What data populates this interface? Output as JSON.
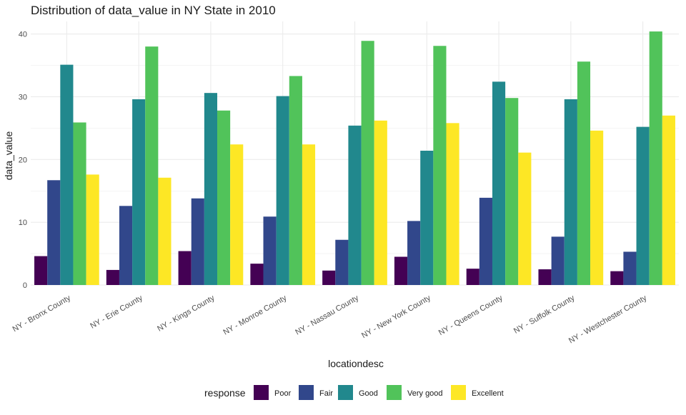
{
  "chart_data": {
    "type": "bar",
    "title": "Distribution of data_value in NY State in 2010",
    "xlabel": "locationdesc",
    "ylabel": "data_value",
    "ylim": [
      0,
      42
    ],
    "yticks": [
      0,
      10,
      20,
      30,
      40
    ],
    "grid": true,
    "legend_position": "bottom",
    "legend_title": "response",
    "categories": [
      "NY - Bronx County",
      "NY - Erie County",
      "NY - Kings County",
      "NY - Monroe County",
      "NY - Nassau County",
      "NY - New York County",
      "NY - Queens County",
      "NY - Suffolk County",
      "NY - Westchester County"
    ],
    "series": [
      {
        "name": "Poor",
        "color": "#440154",
        "values": [
          4.6,
          2.4,
          5.4,
          3.4,
          2.3,
          4.5,
          2.6,
          2.5,
          2.2
        ]
      },
      {
        "name": "Fair",
        "color": "#31478b",
        "values": [
          16.7,
          12.6,
          13.8,
          10.9,
          7.2,
          10.2,
          13.9,
          7.7,
          5.3
        ]
      },
      {
        "name": "Good",
        "color": "#21888d",
        "values": [
          35.1,
          29.6,
          30.6,
          30.1,
          25.4,
          21.4,
          32.4,
          29.6,
          25.2
        ]
      },
      {
        "name": "Very good",
        "color": "#51c35a",
        "values": [
          25.9,
          38.0,
          27.8,
          33.3,
          38.9,
          38.1,
          29.8,
          35.6,
          40.4
        ]
      },
      {
        "name": "Excellent",
        "color": "#fde725",
        "values": [
          17.6,
          17.1,
          22.4,
          22.4,
          26.2,
          25.8,
          21.1,
          24.6,
          27.0
        ]
      }
    ]
  }
}
